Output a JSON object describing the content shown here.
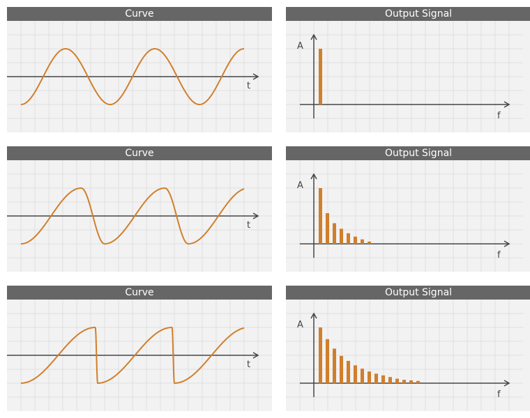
{
  "colors": {
    "accent": "#d07f2c",
    "header_bg": "#666666",
    "panel_bg": "#f2f2f2",
    "grid": "#e0e0e0",
    "axis": "#444444"
  },
  "rows": [
    {
      "curve": {
        "title": "Curve",
        "t_label": "t",
        "shape": "sine"
      },
      "signal": {
        "title": "Output Signal",
        "a_label": "A",
        "f_label": "f",
        "harmonics": [
          1.0
        ]
      }
    },
    {
      "curve": {
        "title": "Curve",
        "t_label": "t",
        "shape": "rounded-triangle"
      },
      "signal": {
        "title": "Output Signal",
        "a_label": "A",
        "f_label": "f",
        "harmonics": [
          1.0,
          0.55,
          0.37,
          0.27,
          0.19,
          0.13,
          0.08,
          0.04
        ]
      }
    },
    {
      "curve": {
        "title": "Curve",
        "t_label": "t",
        "shape": "sawtooth"
      },
      "signal": {
        "title": "Output Signal",
        "a_label": "A",
        "f_label": "f",
        "harmonics": [
          1.0,
          0.79,
          0.62,
          0.49,
          0.4,
          0.32,
          0.26,
          0.21,
          0.17,
          0.14,
          0.11,
          0.08,
          0.06,
          0.05,
          0.04
        ]
      }
    }
  ]
}
